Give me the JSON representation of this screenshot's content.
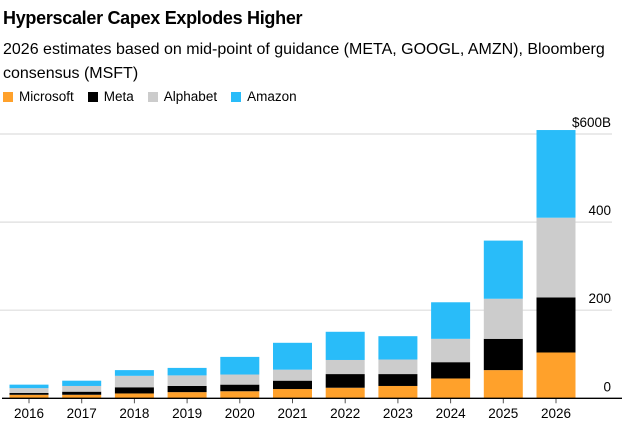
{
  "title": "Hyperscaler Capex Explodes Higher",
  "subtitle": "2026 estimates based on mid-point of guidance (META, GOOGL, AMZN), Bloomberg consensus (MSFT)",
  "chart_data": {
    "type": "bar",
    "stacked": true,
    "categories": [
      "2016",
      "2017",
      "2018",
      "2019",
      "2020",
      "2021",
      "2022",
      "2023",
      "2024",
      "2025",
      "2026"
    ],
    "series": [
      {
        "name": "Microsoft",
        "color": "#FFA12B",
        "values": [
          8,
          8,
          11,
          14,
          16,
          21,
          24,
          28,
          45,
          64,
          104
        ]
      },
      {
        "name": "Meta",
        "color": "#000000",
        "values": [
          4,
          7,
          14,
          14,
          15,
          19,
          31,
          27,
          37,
          71,
          125
        ]
      },
      {
        "name": "Alphabet",
        "color": "#CCCCCC",
        "values": [
          11,
          13,
          26,
          24,
          23,
          25,
          32,
          33,
          53,
          91,
          181
        ]
      },
      {
        "name": "Amazon",
        "color": "#29BCF9",
        "values": [
          8,
          12,
          13,
          17,
          40,
          61,
          64,
          53,
          83,
          132,
          199
        ]
      }
    ],
    "ylim": [
      0,
      600
    ],
    "yticks": [
      0,
      200,
      400,
      600
    ],
    "ytick_labels": [
      "0",
      "200",
      "400",
      "$600B"
    ],
    "grid": true,
    "legend": "top-left",
    "y_axis_side": "right"
  }
}
